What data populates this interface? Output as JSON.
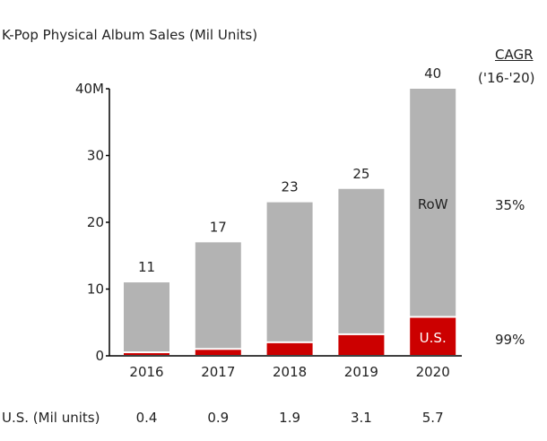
{
  "chart_data": {
    "type": "bar",
    "stacked": true,
    "title": "K-Pop Physical Album Sales (Mil Units)",
    "categories": [
      "2016",
      "2017",
      "2018",
      "2019",
      "2020"
    ],
    "totals": [
      11,
      17,
      23,
      25,
      40
    ],
    "series": [
      {
        "name": "U.S.",
        "values": [
          0.4,
          0.9,
          1.9,
          3.1,
          5.7
        ],
        "color": "#cc0000"
      },
      {
        "name": "RoW",
        "values": [
          10.6,
          16.1,
          21.1,
          21.9,
          34.3
        ],
        "color": "#b3b3b3"
      }
    ],
    "y_ticks": [
      "0",
      "10",
      "20",
      "30",
      "40M"
    ],
    "y_tick_values": [
      0,
      10,
      20,
      30,
      40
    ],
    "ylim": [
      0,
      40
    ],
    "xlabel": "",
    "ylabel": "",
    "grid": false,
    "cagr": {
      "header_line1": "CAGR",
      "header_line2": "('16-'20)",
      "row": "35%",
      "us": "99%"
    },
    "us_row": {
      "label": "U.S. (Mil units)",
      "values": [
        "0.4",
        "0.9",
        "1.9",
        "3.1",
        "5.7"
      ]
    },
    "segment_labels": {
      "row": "RoW",
      "us": "U.S."
    }
  }
}
